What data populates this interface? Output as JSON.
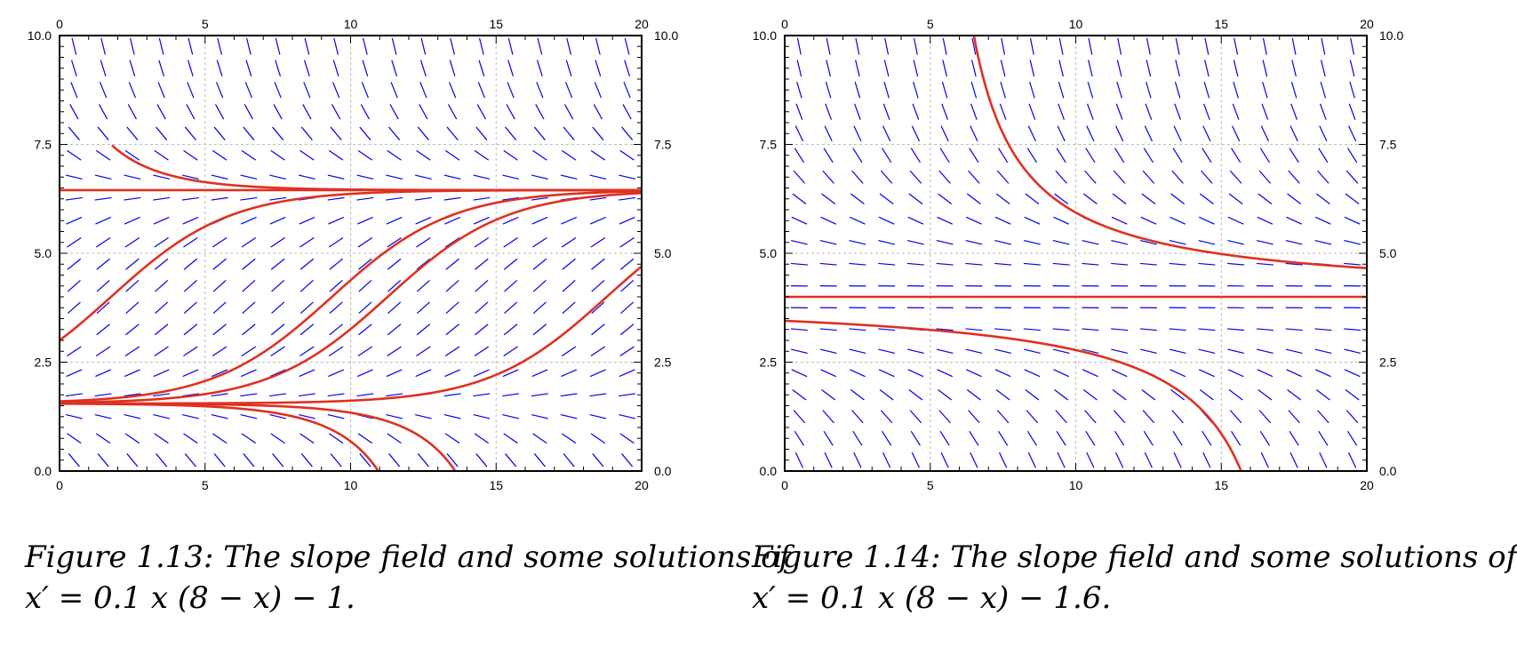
{
  "chart_data": [
    {
      "type": "line",
      "ode": {
        "a": 0.1,
        "k": 8,
        "h": 1
      },
      "xlim": [
        0,
        20
      ],
      "ylim": [
        0,
        10
      ],
      "x_ticks": [
        "0",
        "5",
        "10",
        "15",
        "20"
      ],
      "y_ticks": [
        "0.0",
        "2.5",
        "5.0",
        "7.5",
        "10.0"
      ],
      "grid": true,
      "slope_field": {
        "color": "#0000ee",
        "x_step": 1,
        "y_step": 0.5
      },
      "series": [
        {
          "x0": 0,
          "x_start": 1.8,
          "y0": 10
        },
        {
          "x0": 0,
          "y0": 6.45
        },
        {
          "x0": 0,
          "y0": 3.0
        },
        {
          "x0": 0,
          "y0": 1.6
        },
        {
          "x0": 0,
          "y0": 1.57
        },
        {
          "x0": 0,
          "y0": 1.551
        },
        {
          "x0": 0,
          "y0": 1.549
        },
        {
          "x0": 0,
          "y0": 1.545
        }
      ],
      "series_color": "#e03020",
      "caption_line1": "Figure 1.13: The slope field and some solutions of",
      "caption_line2": "x′ = 0.1 x (8 − x) − 1."
    },
    {
      "type": "line",
      "ode": {
        "a": 0.1,
        "k": 8,
        "h": 1.6
      },
      "xlim": [
        0,
        20
      ],
      "ylim": [
        0,
        10
      ],
      "x_ticks": [
        "0",
        "5",
        "10",
        "15",
        "20"
      ],
      "y_ticks": [
        "0.0",
        "2.5",
        "5.0",
        "7.5",
        "10.0"
      ],
      "grid": true,
      "slope_field": {
        "color": "#0000ee",
        "x_step": 1,
        "y_step": 0.5
      },
      "series": [
        {
          "x0": 6.5,
          "y0": 10
        },
        {
          "x0": 0,
          "y0": 4.0
        },
        {
          "x0": 0,
          "y0": 3.45
        }
      ],
      "series_color": "#e03020",
      "caption_line1": "Figure 1.14: The slope field and some solutions of",
      "caption_line2": "x′ = 0.1 x (8 − x) − 1.6."
    }
  ]
}
